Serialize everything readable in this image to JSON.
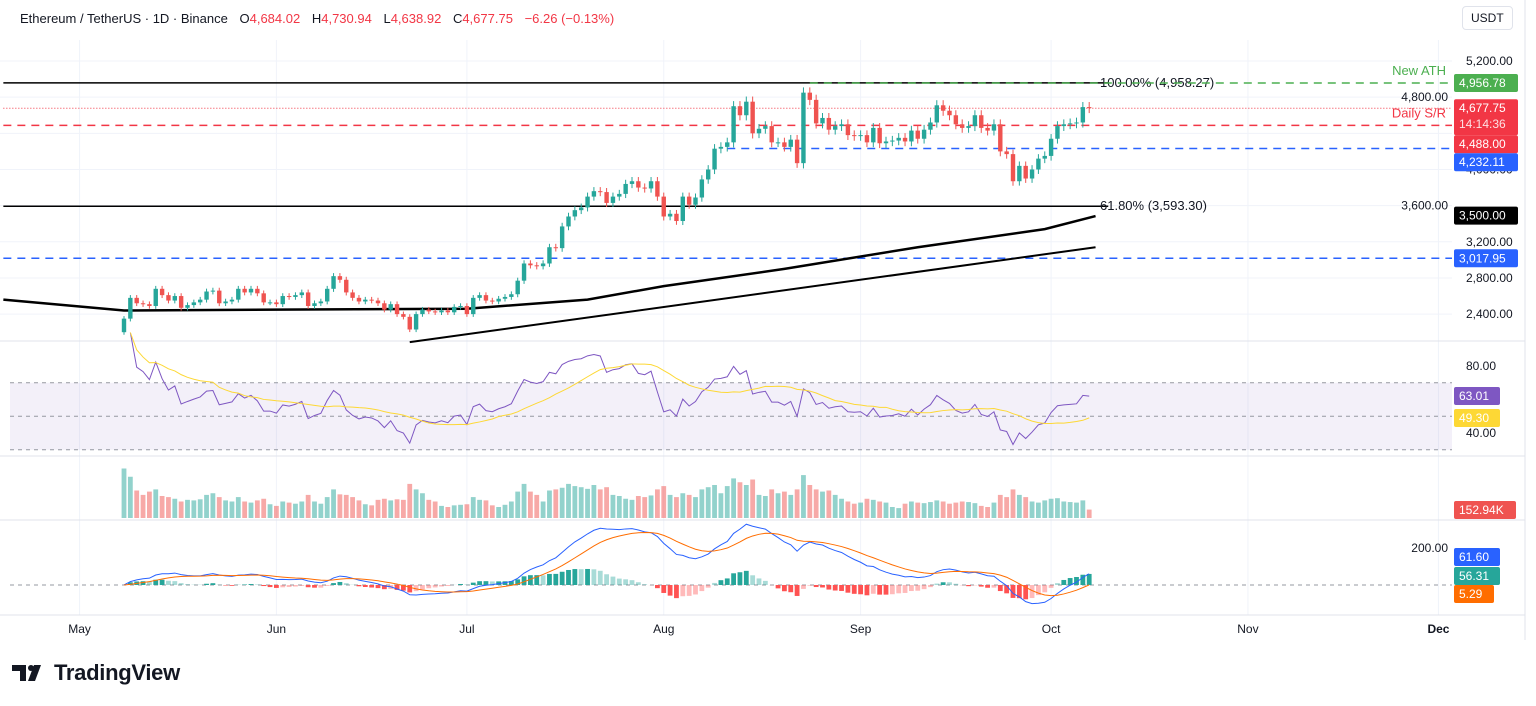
{
  "header": {
    "symbol": "Ethereum / TetherUS · 1D · Binance",
    "open_label": "O",
    "open": "4,684.02",
    "high_label": "H",
    "high": "4,730.94",
    "low_label": "L",
    "low": "4,638.92",
    "close_label": "C",
    "close": "4,677.75",
    "change": "−6.26 (−0.13%)"
  },
  "currency": "USDT",
  "logo": "TradingView",
  "colors": {
    "up": "#26a69a",
    "down": "#ef5350",
    "blue": "#2962ff",
    "green": "#4caf50",
    "rsi": "#7e57c2",
    "rsi_ma": "#fdd835",
    "macd": "#2962ff",
    "signal": "#ff6d00"
  },
  "chart_data": {
    "type": "candlestick",
    "title": "Ethereum / TetherUS · 1D · Binance",
    "x_ticks": [
      "May",
      "Jun",
      "Jul",
      "Aug",
      "Sep",
      "Oct",
      "Nov",
      "Dec"
    ],
    "y_ticks": [
      "5,200.00",
      "4,800.00",
      "4,000.00",
      "3,600.00",
      "3,200.00",
      "2,800.00",
      "2,400.00"
    ],
    "ylim": [
      2100,
      5350
    ],
    "start_date": "May 8",
    "first_open": 2200,
    "closes": [
      2350,
      2580,
      2520,
      2510,
      2490,
      2680,
      2610,
      2550,
      2600,
      2470,
      2500,
      2530,
      2560,
      2650,
      2660,
      2520,
      2540,
      2560,
      2680,
      2640,
      2680,
      2630,
      2530,
      2530,
      2510,
      2600,
      2590,
      2610,
      2640,
      2490,
      2520,
      2540,
      2680,
      2820,
      2780,
      2640,
      2580,
      2540,
      2560,
      2550,
      2520,
      2450,
      2510,
      2400,
      2370,
      2230,
      2400,
      2450,
      2430,
      2420,
      2440,
      2420,
      2480,
      2490,
      2400,
      2580,
      2610,
      2550,
      2540,
      2570,
      2590,
      2620,
      2770,
      2960,
      2940,
      2930,
      2960,
      3140,
      3130,
      3370,
      3480,
      3550,
      3580,
      3700,
      3760,
      3750,
      3630,
      3700,
      3730,
      3840,
      3870,
      3800,
      3790,
      3870,
      3700,
      3480,
      3510,
      3430,
      3700,
      3610,
      3690,
      3890,
      4000,
      4230,
      4250,
      4300,
      4700,
      4600,
      4750,
      4400,
      4450,
      4480,
      4300,
      4300,
      4250,
      4330,
      4070,
      4850,
      4770,
      4510,
      4570,
      4440,
      4480,
      4500,
      4380,
      4370,
      4380,
      4300,
      4460,
      4290,
      4310,
      4320,
      4350,
      4310,
      4430,
      4340,
      4440,
      4520,
      4710,
      4650,
      4600,
      4500,
      4460,
      4480,
      4600,
      4460,
      4430,
      4500,
      4200,
      4170,
      3870,
      4040,
      3900,
      4000,
      4120,
      4150,
      4340,
      4480,
      4500,
      4510,
      4520,
      4690,
      4680
    ],
    "volume_k": [
      900,
      750,
      500,
      420,
      480,
      520,
      400,
      380,
      350,
      300,
      330,
      320,
      340,
      420,
      450,
      380,
      320,
      300,
      380,
      300,
      280,
      320,
      350,
      250,
      220,
      300,
      280,
      260,
      300,
      420,
      300,
      260,
      380,
      520,
      430,
      420,
      380,
      320,
      250,
      230,
      330,
      350,
      320,
      340,
      330,
      620,
      520,
      450,
      330,
      300,
      220,
      200,
      230,
      240,
      250,
      380,
      330,
      320,
      230,
      200,
      240,
      300,
      480,
      620,
      480,
      420,
      300,
      500,
      520,
      550,
      620,
      580,
      560,
      530,
      600,
      520,
      560,
      420,
      400,
      350,
      330,
      400,
      380,
      410,
      520,
      580,
      420,
      380,
      450,
      420,
      380,
      520,
      560,
      600,
      450,
      580,
      720,
      650,
      600,
      700,
      420,
      400,
      520,
      450,
      480,
      420,
      520,
      780,
      600,
      520,
      480,
      500,
      420,
      350,
      300,
      260,
      280,
      350,
      330,
      300,
      280,
      200,
      180,
      260,
      300,
      280,
      270,
      290,
      320,
      300,
      260,
      280,
      300,
      290,
      270,
      220,
      200,
      280,
      420,
      380,
      520,
      420,
      380,
      300,
      280,
      320,
      350,
      360,
      300,
      290,
      280,
      320,
      153
    ],
    "moving_average": [
      {
        "date": "Apr 20",
        "value": 2560
      },
      {
        "date": "May 8",
        "value": 2440
      },
      {
        "date": "Jun 1",
        "value": 2450
      },
      {
        "date": "Jul 1",
        "value": 2460
      },
      {
        "date": "Jul 20",
        "value": 2560
      },
      {
        "date": "Aug 1",
        "value": 2710
      },
      {
        "date": "Aug 20",
        "value": 2900
      },
      {
        "date": "Sep 10",
        "value": 3140
      },
      {
        "date": "Sep 30",
        "value": 3340
      },
      {
        "date": "Oct 8",
        "value": 3485
      }
    ],
    "trendline": [
      {
        "date": "Jun 22",
        "value": 2090
      },
      {
        "date": "Oct 8",
        "value": 3140
      }
    ],
    "levels": [
      {
        "name": "fib-100",
        "value": 4958.27,
        "label": "100.00% (4,958.27)",
        "style": "solid",
        "color": "#000000",
        "from": "Apr 20",
        "to": "Oct 10"
      },
      {
        "name": "new-ath",
        "value": 4956.78,
        "label": "New ATH",
        "style": "dashed",
        "color": "#4caf50",
        "from": "Aug 24",
        "to": "end",
        "badge": "4,956.78"
      },
      {
        "name": "current-price",
        "value": 4677.75,
        "style": "dotted",
        "color": "#f23645",
        "from": "Apr 20",
        "to": "end"
      },
      {
        "name": "daily-sr",
        "value": 4488,
        "label": "Daily S/R",
        "style": "dashed",
        "color": "#f23645",
        "from": "Apr 20",
        "to": "end",
        "badge": "4,488.00"
      },
      {
        "name": "support-4232",
        "value": 4232.11,
        "style": "dashed",
        "color": "#2962ff",
        "from": "Aug 11",
        "to": "end",
        "badge": "4,232.11"
      },
      {
        "name": "fib-618",
        "value": 3593.3,
        "label": "61.80% (3,593.30)",
        "style": "solid",
        "color": "#000000",
        "from": "Apr 20",
        "to": "Oct 10"
      },
      {
        "name": "support-3018",
        "value": 3017.95,
        "style": "dashed",
        "color": "#2962ff",
        "from": "Apr 20",
        "to": "end",
        "badge": "3,017.95"
      }
    ],
    "price_badges": {
      "last": "4,677.75",
      "countdown": "14:14:36",
      "ma": "3,500.00"
    },
    "rsi": {
      "ticks": [
        "80.00",
        "40.00"
      ],
      "value": "63.01",
      "ma_value": "49.30",
      "upper": 70,
      "lower": 30
    },
    "volume": {
      "value": "152.94K"
    },
    "macd": {
      "ticks": [
        "200.00"
      ],
      "macd": "61.60",
      "histogram": "56.31",
      "signal": "5.29"
    }
  }
}
